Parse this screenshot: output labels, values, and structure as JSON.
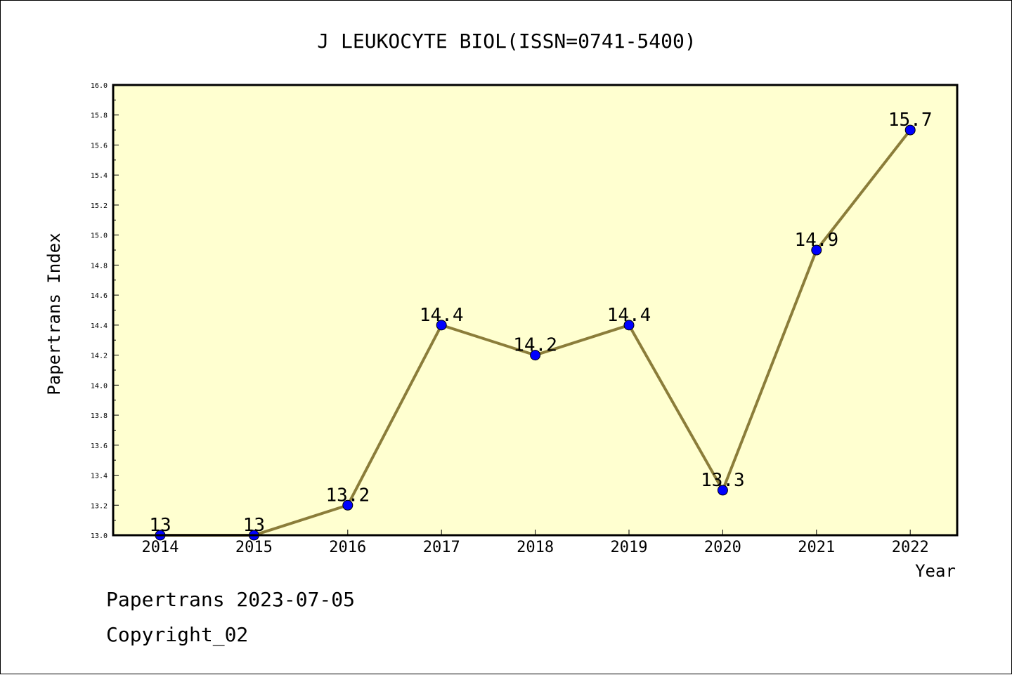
{
  "chart_data": {
    "type": "line",
    "title": "J LEUKOCYTE BIOL(ISSN=0741-5400)",
    "xlabel": "Year",
    "ylabel": "Papertrans Index",
    "categories": [
      "2014",
      "2015",
      "2016",
      "2017",
      "2018",
      "2019",
      "2020",
      "2021",
      "2022"
    ],
    "values": [
      13,
      13,
      13.2,
      14.4,
      14.2,
      14.4,
      13.3,
      14.9,
      15.7
    ],
    "data_labels": [
      "13",
      "13",
      "13.2",
      "14.4",
      "14.2",
      "14.4",
      "13.3",
      "14.9",
      "15.7"
    ],
    "ylim": [
      13.0,
      16.0
    ],
    "yticks": [
      "13.0",
      "13.2",
      "13.4",
      "13.6",
      "13.8",
      "14.0",
      "14.2",
      "14.4",
      "14.6",
      "14.8",
      "15.0",
      "15.2",
      "15.4",
      "15.6",
      "15.8",
      "16.0"
    ],
    "grid": false,
    "plot_background": "#ffffd0",
    "line_color": "#8b7d3a",
    "marker_color": "#0000ff"
  },
  "footer": {
    "line1": "Papertrans 2023-07-05",
    "line2": "Copyright_02"
  }
}
